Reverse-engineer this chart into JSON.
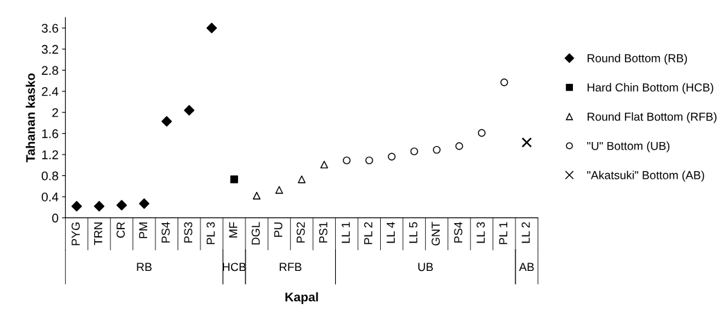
{
  "chart_data": {
    "type": "scatter",
    "xlabel": "Kapal",
    "ylabel": "Tahanan kasko",
    "categories": [
      "PYG",
      "TRN",
      "CR",
      "PM",
      "PS4",
      "PS3",
      "PL 3",
      "MF",
      "DGL",
      "PU",
      "PS2",
      "PS1",
      "LL 1",
      "PL 2",
      "LL 4",
      "LL 5",
      "GNT",
      "PS4",
      "LL 3",
      "PL 1",
      "LL 2"
    ],
    "series": [
      {
        "name": "Round Bottom (RB)",
        "color": "#000000",
        "marker": "diamond",
        "values": [
          0.22,
          0.22,
          0.24,
          0.27,
          1.83,
          2.04,
          3.6,
          null,
          null,
          null,
          null,
          null,
          null,
          null,
          null,
          null,
          null,
          null,
          null,
          null,
          null
        ]
      },
      {
        "name": "Hard Chin Bottom (HCB)",
        "color": "#000000",
        "marker": "square",
        "values": [
          null,
          null,
          null,
          null,
          null,
          null,
          null,
          0.73,
          null,
          null,
          null,
          null,
          null,
          null,
          null,
          null,
          null,
          null,
          null,
          null,
          null
        ]
      },
      {
        "name": "Round Flat Bottom (RFB)",
        "color": "#000000",
        "marker": "triangle",
        "values": [
          null,
          null,
          null,
          null,
          null,
          null,
          null,
          null,
          0.42,
          0.53,
          0.73,
          1.01,
          null,
          null,
          null,
          null,
          null,
          null,
          null,
          null,
          null
        ]
      },
      {
        "name": "\"U\" Bottom (UB)",
        "color": "#000000",
        "marker": "circle",
        "values": [
          null,
          null,
          null,
          null,
          null,
          null,
          null,
          null,
          null,
          null,
          null,
          null,
          1.09,
          1.09,
          1.16,
          1.26,
          1.29,
          1.36,
          1.61,
          2.57,
          null
        ]
      },
      {
        "name": "\"Akatsuki\" Bottom (AB)",
        "color": "#000000",
        "marker": "cross",
        "values": [
          null,
          null,
          null,
          null,
          null,
          null,
          null,
          null,
          null,
          null,
          null,
          null,
          null,
          null,
          null,
          null,
          null,
          null,
          null,
          null,
          1.43
        ]
      }
    ],
    "annotations": [
      "RB",
      "HCB",
      "RFB",
      "UB",
      "AB"
    ],
    "ylim": [
      0,
      3.8
    ],
    "yticks": [
      0,
      0.4,
      0.8,
      1.2,
      1.6,
      2,
      2.4,
      2.8,
      3.2,
      3.6
    ],
    "grid": false,
    "legend": "right"
  }
}
